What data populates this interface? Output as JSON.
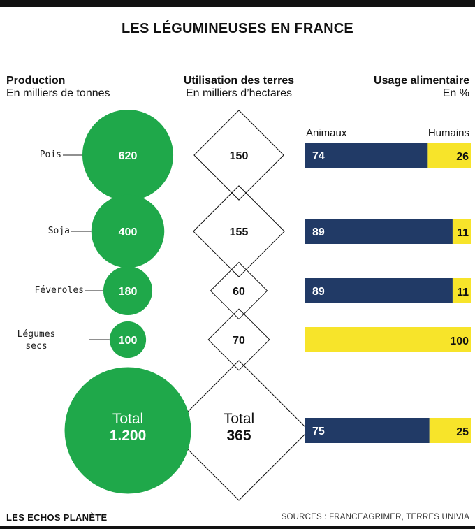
{
  "title": "LES LÉGUMINEUSES EN FRANCE",
  "columns": {
    "production": {
      "heading": "Production",
      "unit": "En milliers de tonnes"
    },
    "land": {
      "heading": "Utilisation des terres",
      "unit": "En milliers d’hectares"
    },
    "food": {
      "heading": "Usage alimentaire",
      "unit": "En %"
    }
  },
  "legend": {
    "animals": "Animaux",
    "humans": "Humains"
  },
  "colors": {
    "green": "#1fa84a",
    "navy": "#213a66",
    "yellow": "#f7e42a",
    "line": "#111111"
  },
  "chart_data": {
    "type": "table",
    "rows": [
      {
        "label": "Pois",
        "production": "620",
        "land": "150",
        "animals": "74",
        "humans": "26",
        "production_value": 620,
        "land_value": 150,
        "animals_value": 74,
        "humans_value": 26
      },
      {
        "label": "Soja",
        "production": "400",
        "land": "155",
        "animals": "89",
        "humans": "11",
        "production_value": 400,
        "land_value": 155,
        "animals_value": 89,
        "humans_value": 11
      },
      {
        "label": "Féveroles",
        "production": "180",
        "land": "60",
        "animals": "89",
        "humans": "11",
        "production_value": 180,
        "land_value": 60,
        "animals_value": 89,
        "humans_value": 11
      },
      {
        "label": "Légumes secs",
        "production": "100",
        "land": "70",
        "animals": "",
        "humans": "100",
        "production_value": 100,
        "land_value": 70,
        "animals_value": 0,
        "humans_value": 100
      }
    ],
    "total": {
      "label": "Total",
      "production": "1.200",
      "land": "365",
      "animals": "75",
      "humans": "25",
      "production_value": 1200,
      "land_value": 365,
      "animals_value": 75,
      "humans_value": 25
    }
  },
  "footer": {
    "brand": "LES ECHOS PLANÈTE",
    "sources": "SOURCES : FRANCEAGRIMER, TERRES UNIVIA"
  }
}
